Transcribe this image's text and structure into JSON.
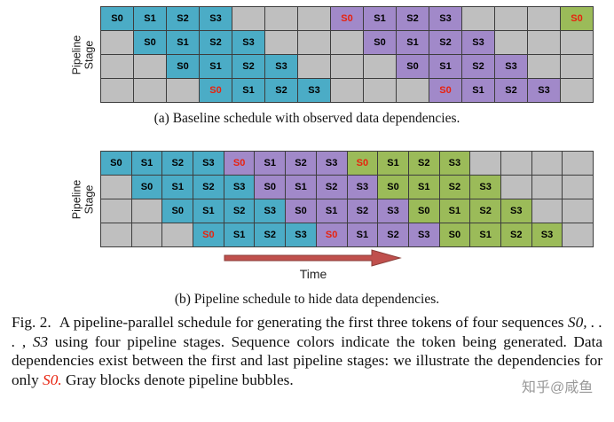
{
  "colors": {
    "token1": "#4bacc6",
    "token2": "#a189c9",
    "token3": "#9bbb59",
    "bubble": "#bfbfbf",
    "highlight": "#e8220e",
    "arrow": "#c0504d",
    "watermark": "#999999"
  },
  "figure_a": {
    "stage_label_line1": "Pipeline",
    "stage_label_line2": "Stage",
    "caption": "(a) Baseline schedule with observed data dependencies.",
    "grid": {
      "cols": 15,
      "rows": [
        [
          {
            "l": "S0",
            "c": "t1"
          },
          {
            "l": "S1",
            "c": "t1"
          },
          {
            "l": "S2",
            "c": "t1"
          },
          {
            "l": "S3",
            "c": "t1"
          },
          {
            "c": "x"
          },
          {
            "c": "x"
          },
          {
            "c": "x"
          },
          {
            "l": "S0",
            "c": "t2",
            "hl": true
          },
          {
            "l": "S1",
            "c": "t2"
          },
          {
            "l": "S2",
            "c": "t2"
          },
          {
            "l": "S3",
            "c": "t2"
          },
          {
            "c": "x"
          },
          {
            "c": "x"
          },
          {
            "c": "x"
          },
          {
            "l": "S0",
            "c": "t3",
            "hl": true
          }
        ],
        [
          {
            "c": "x"
          },
          {
            "l": "S0",
            "c": "t1"
          },
          {
            "l": "S1",
            "c": "t1"
          },
          {
            "l": "S2",
            "c": "t1"
          },
          {
            "l": "S3",
            "c": "t1"
          },
          {
            "c": "x"
          },
          {
            "c": "x"
          },
          {
            "c": "x"
          },
          {
            "l": "S0",
            "c": "t2"
          },
          {
            "l": "S1",
            "c": "t2"
          },
          {
            "l": "S2",
            "c": "t2"
          },
          {
            "l": "S3",
            "c": "t2"
          },
          {
            "c": "x"
          },
          {
            "c": "x"
          },
          {
            "c": "x"
          }
        ],
        [
          {
            "c": "x"
          },
          {
            "c": "x"
          },
          {
            "l": "S0",
            "c": "t1"
          },
          {
            "l": "S1",
            "c": "t1"
          },
          {
            "l": "S2",
            "c": "t1"
          },
          {
            "l": "S3",
            "c": "t1"
          },
          {
            "c": "x"
          },
          {
            "c": "x"
          },
          {
            "c": "x"
          },
          {
            "l": "S0",
            "c": "t2"
          },
          {
            "l": "S1",
            "c": "t2"
          },
          {
            "l": "S2",
            "c": "t2"
          },
          {
            "l": "S3",
            "c": "t2"
          },
          {
            "c": "x"
          },
          {
            "c": "x"
          }
        ],
        [
          {
            "c": "x"
          },
          {
            "c": "x"
          },
          {
            "c": "x"
          },
          {
            "l": "S0",
            "c": "t1",
            "hl": true
          },
          {
            "l": "S1",
            "c": "t1"
          },
          {
            "l": "S2",
            "c": "t1"
          },
          {
            "l": "S3",
            "c": "t1"
          },
          {
            "c": "x"
          },
          {
            "c": "x"
          },
          {
            "c": "x"
          },
          {
            "l": "S0",
            "c": "t2",
            "hl": true
          },
          {
            "l": "S1",
            "c": "t2"
          },
          {
            "l": "S2",
            "c": "t2"
          },
          {
            "l": "S3",
            "c": "t2"
          },
          {
            "c": "x"
          }
        ]
      ]
    }
  },
  "figure_b": {
    "stage_label_line1": "Pipeline",
    "stage_label_line2": "Stage",
    "caption": "(b) Pipeline schedule to hide data dependencies.",
    "time_label": "Time",
    "grid": {
      "cols": 16,
      "rows": [
        [
          {
            "l": "S0",
            "c": "t1"
          },
          {
            "l": "S1",
            "c": "t1"
          },
          {
            "l": "S2",
            "c": "t1"
          },
          {
            "l": "S3",
            "c": "t1"
          },
          {
            "l": "S0",
            "c": "t2",
            "hl": true
          },
          {
            "l": "S1",
            "c": "t2"
          },
          {
            "l": "S2",
            "c": "t2"
          },
          {
            "l": "S3",
            "c": "t2"
          },
          {
            "l": "S0",
            "c": "t3",
            "hl": true
          },
          {
            "l": "S1",
            "c": "t3"
          },
          {
            "l": "S2",
            "c": "t3"
          },
          {
            "l": "S3",
            "c": "t3"
          },
          {
            "c": "x"
          },
          {
            "c": "x"
          },
          {
            "c": "x"
          },
          {
            "c": "x"
          }
        ],
        [
          {
            "c": "x"
          },
          {
            "l": "S0",
            "c": "t1"
          },
          {
            "l": "S1",
            "c": "t1"
          },
          {
            "l": "S2",
            "c": "t1"
          },
          {
            "l": "S3",
            "c": "t1"
          },
          {
            "l": "S0",
            "c": "t2"
          },
          {
            "l": "S1",
            "c": "t2"
          },
          {
            "l": "S2",
            "c": "t2"
          },
          {
            "l": "S3",
            "c": "t2"
          },
          {
            "l": "S0",
            "c": "t3"
          },
          {
            "l": "S1",
            "c": "t3"
          },
          {
            "l": "S2",
            "c": "t3"
          },
          {
            "l": "S3",
            "c": "t3"
          },
          {
            "c": "x"
          },
          {
            "c": "x"
          },
          {
            "c": "x"
          }
        ],
        [
          {
            "c": "x"
          },
          {
            "c": "x"
          },
          {
            "l": "S0",
            "c": "t1"
          },
          {
            "l": "S1",
            "c": "t1"
          },
          {
            "l": "S2",
            "c": "t1"
          },
          {
            "l": "S3",
            "c": "t1"
          },
          {
            "l": "S0",
            "c": "t2"
          },
          {
            "l": "S1",
            "c": "t2"
          },
          {
            "l": "S2",
            "c": "t2"
          },
          {
            "l": "S3",
            "c": "t2"
          },
          {
            "l": "S0",
            "c": "t3"
          },
          {
            "l": "S1",
            "c": "t3"
          },
          {
            "l": "S2",
            "c": "t3"
          },
          {
            "l": "S3",
            "c": "t3"
          },
          {
            "c": "x"
          },
          {
            "c": "x"
          }
        ],
        [
          {
            "c": "x"
          },
          {
            "c": "x"
          },
          {
            "c": "x"
          },
          {
            "l": "S0",
            "c": "t1",
            "hl": true
          },
          {
            "l": "S1",
            "c": "t1"
          },
          {
            "l": "S2",
            "c": "t1"
          },
          {
            "l": "S3",
            "c": "t1"
          },
          {
            "l": "S0",
            "c": "t2",
            "hl": true
          },
          {
            "l": "S1",
            "c": "t2"
          },
          {
            "l": "S2",
            "c": "t2"
          },
          {
            "l": "S3",
            "c": "t2"
          },
          {
            "l": "S0",
            "c": "t3"
          },
          {
            "l": "S1",
            "c": "t3"
          },
          {
            "l": "S2",
            "c": "t3"
          },
          {
            "l": "S3",
            "c": "t3"
          },
          {
            "c": "x"
          }
        ]
      ]
    }
  },
  "main_caption": {
    "fig_label": "Fig. 2.",
    "seg1": "A pipeline-parallel schedule for generating the first three tokens of four sequences ",
    "math_range": "S0, . . . , S3",
    "seg2": " using four pipeline stages. Sequence colors indicate the token being generated. Data dependencies exist between the first and last pipeline stages: we illustrate the dependencies for only ",
    "highlight": "S0.",
    "seg3": " Gray blocks denote pipeline bubbles."
  },
  "watermark": "知乎@咸鱼"
}
